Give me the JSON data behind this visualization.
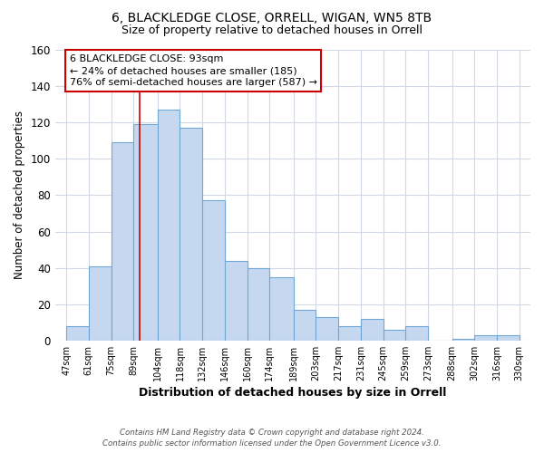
{
  "title1": "6, BLACKLEDGE CLOSE, ORRELL, WIGAN, WN5 8TB",
  "title2": "Size of property relative to detached houses in Orrell",
  "xlabel": "Distribution of detached houses by size in Orrell",
  "ylabel": "Number of detached properties",
  "bar_left_edges": [
    47,
    61,
    75,
    89,
    104,
    118,
    132,
    146,
    160,
    174,
    189,
    203,
    217,
    231,
    245,
    259,
    273,
    288,
    302,
    316
  ],
  "bar_widths": [
    14,
    14,
    14,
    15,
    14,
    14,
    14,
    14,
    14,
    15,
    14,
    14,
    14,
    14,
    14,
    14,
    15,
    14,
    14,
    14
  ],
  "bar_heights": [
    8,
    41,
    109,
    119,
    127,
    117,
    77,
    44,
    40,
    35,
    17,
    13,
    8,
    12,
    6,
    8,
    0,
    1,
    3,
    3
  ],
  "bar_color": "#c5d8f0",
  "bar_edge_color": "#6fa8d6",
  "x_tick_labels": [
    "47sqm",
    "61sqm",
    "75sqm",
    "89sqm",
    "104sqm",
    "118sqm",
    "132sqm",
    "146sqm",
    "160sqm",
    "174sqm",
    "189sqm",
    "203sqm",
    "217sqm",
    "231sqm",
    "245sqm",
    "259sqm",
    "273sqm",
    "288sqm",
    "302sqm",
    "316sqm",
    "330sqm"
  ],
  "x_tick_positions": [
    47,
    61,
    75,
    89,
    104,
    118,
    132,
    146,
    160,
    174,
    189,
    203,
    217,
    231,
    245,
    259,
    273,
    288,
    302,
    316,
    330
  ],
  "ylim": [
    0,
    160
  ],
  "xlim": [
    40,
    337
  ],
  "yticks": [
    0,
    20,
    40,
    60,
    80,
    100,
    120,
    140,
    160
  ],
  "vline_x": 93,
  "vline_color": "#cc0000",
  "annotation_title": "6 BLACKLEDGE CLOSE: 93sqm",
  "annotation_line1": "← 24% of detached houses are smaller (185)",
  "annotation_line2": "76% of semi-detached houses are larger (587) →",
  "annotation_box_color": "#cc0000",
  "annotation_box_fill": "#ffffff",
  "footer1": "Contains HM Land Registry data © Crown copyright and database right 2024.",
  "footer2": "Contains public sector information licensed under the Open Government Licence v3.0.",
  "grid_color": "#d0d8e4",
  "background_color": "#ffffff"
}
